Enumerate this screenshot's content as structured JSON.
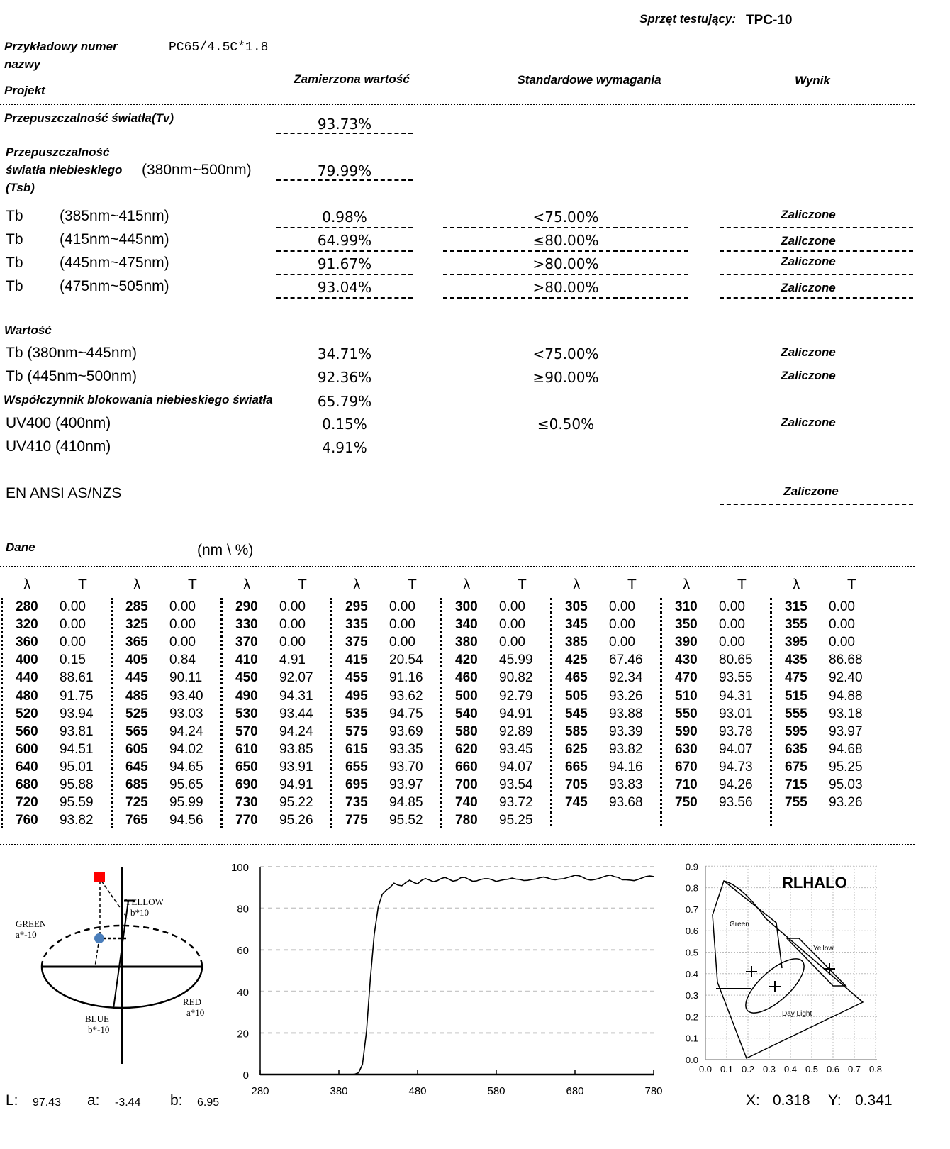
{
  "header": {
    "equipment_label": "Sprzęt testujący:",
    "equipment_value": "TPC-10"
  },
  "sample": {
    "label_line1": "Przykładowy numer",
    "label_line2": "nazwy",
    "value": "PC65/4.5C*1.8"
  },
  "columns": {
    "project": "Projekt",
    "measured": "Zamierzona wartość",
    "standard": "Standardowe wymagania",
    "result": "Wynik"
  },
  "tv": {
    "label": "Przepuszczalność światła(Tv)",
    "value": "93.73%"
  },
  "tsb": {
    "label_line1": "Przepuszczalność",
    "label_line2": "światła niebieskiego",
    "label_line3": "(Tsb)",
    "range": "(380nm~500nm)",
    "value": "79.99%"
  },
  "tb_rows": [
    {
      "name": "Tb",
      "range": "(385nm~415nm)",
      "value": "0.98%",
      "standard": "<75.00%",
      "result": "Zaliczone"
    },
    {
      "name": "Tb",
      "range": "(415nm~445nm)",
      "value": "64.99%",
      "standard": "≤80.00%",
      "result": "Zaliczone"
    },
    {
      "name": "Tb",
      "range": "(445nm~475nm)",
      "value": "91.67%",
      "standard": ">80.00%",
      "result": "Zaliczone"
    },
    {
      "name": "Tb",
      "range": "(475nm~505nm)",
      "value": "93.04%",
      "standard": ">80.00%",
      "result": "Zaliczone"
    }
  ],
  "values_section": {
    "title": "Wartość",
    "rows": [
      {
        "label": "Tb  (380nm~445nm)",
        "value": "34.71%",
        "standard": "<75.00%",
        "result": "Zaliczone"
      },
      {
        "label": "Tb  (445nm~500nm)",
        "value": "92.36%",
        "standard": "≥90.00%",
        "result": "Zaliczone"
      },
      {
        "label": "Współczynnik blokowania niebieskiego światła",
        "value": "65.79%",
        "standard": "",
        "result": ""
      },
      {
        "label": "UV400   (400nm)",
        "value": "0.15%",
        "standard": "≤0.50%",
        "result": "Zaliczone"
      },
      {
        "label": "UV410   (410nm)",
        "value": "4.91%",
        "standard": "",
        "result": ""
      }
    ]
  },
  "standard_row": {
    "label": "EN ANSI AS/NZS",
    "result": "Zaliczone"
  },
  "data_section": {
    "title": "Dane",
    "units": "(nm \\ %)",
    "col_lambda": "λ",
    "col_t": "T"
  },
  "spectrum_table": [
    [
      [
        280,
        "0.00"
      ],
      [
        285,
        "0.00"
      ],
      [
        290,
        "0.00"
      ],
      [
        295,
        "0.00"
      ],
      [
        300,
        "0.00"
      ],
      [
        305,
        "0.00"
      ],
      [
        310,
        "0.00"
      ],
      [
        315,
        "0.00"
      ]
    ],
    [
      [
        320,
        "0.00"
      ],
      [
        325,
        "0.00"
      ],
      [
        330,
        "0.00"
      ],
      [
        335,
        "0.00"
      ],
      [
        340,
        "0.00"
      ],
      [
        345,
        "0.00"
      ],
      [
        350,
        "0.00"
      ],
      [
        355,
        "0.00"
      ]
    ],
    [
      [
        360,
        "0.00"
      ],
      [
        365,
        "0.00"
      ],
      [
        370,
        "0.00"
      ],
      [
        375,
        "0.00"
      ],
      [
        380,
        "0.00"
      ],
      [
        385,
        "0.00"
      ],
      [
        390,
        "0.00"
      ],
      [
        395,
        "0.00"
      ]
    ],
    [
      [
        400,
        "0.15"
      ],
      [
        405,
        "0.84"
      ],
      [
        410,
        "4.91"
      ],
      [
        415,
        "20.54"
      ],
      [
        420,
        "45.99"
      ],
      [
        425,
        "67.46"
      ],
      [
        430,
        "80.65"
      ],
      [
        435,
        "86.68"
      ]
    ],
    [
      [
        440,
        "88.61"
      ],
      [
        445,
        "90.11"
      ],
      [
        450,
        "92.07"
      ],
      [
        455,
        "91.16"
      ],
      [
        460,
        "90.82"
      ],
      [
        465,
        "92.34"
      ],
      [
        470,
        "93.55"
      ],
      [
        475,
        "92.40"
      ]
    ],
    [
      [
        480,
        "91.75"
      ],
      [
        485,
        "93.40"
      ],
      [
        490,
        "94.31"
      ],
      [
        495,
        "93.62"
      ],
      [
        500,
        "92.79"
      ],
      [
        505,
        "93.26"
      ],
      [
        510,
        "94.31"
      ],
      [
        515,
        "94.88"
      ]
    ],
    [
      [
        520,
        "93.94"
      ],
      [
        525,
        "93.03"
      ],
      [
        530,
        "93.44"
      ],
      [
        535,
        "94.75"
      ],
      [
        540,
        "94.91"
      ],
      [
        545,
        "93.88"
      ],
      [
        550,
        "93.01"
      ],
      [
        555,
        "93.18"
      ]
    ],
    [
      [
        560,
        "93.81"
      ],
      [
        565,
        "94.24"
      ],
      [
        570,
        "94.24"
      ],
      [
        575,
        "93.69"
      ],
      [
        580,
        "92.89"
      ],
      [
        585,
        "93.39"
      ],
      [
        590,
        "93.78"
      ],
      [
        595,
        "93.97"
      ]
    ],
    [
      [
        600,
        "94.51"
      ],
      [
        605,
        "94.02"
      ],
      [
        610,
        "93.85"
      ],
      [
        615,
        "93.35"
      ],
      [
        620,
        "93.45"
      ],
      [
        625,
        "93.82"
      ],
      [
        630,
        "94.07"
      ],
      [
        635,
        "94.68"
      ]
    ],
    [
      [
        640,
        "95.01"
      ],
      [
        645,
        "94.65"
      ],
      [
        650,
        "93.91"
      ],
      [
        655,
        "93.70"
      ],
      [
        660,
        "94.07"
      ],
      [
        665,
        "94.16"
      ],
      [
        670,
        "94.73"
      ],
      [
        675,
        "95.25"
      ]
    ],
    [
      [
        680,
        "95.88"
      ],
      [
        685,
        "95.65"
      ],
      [
        690,
        "94.91"
      ],
      [
        695,
        "93.97"
      ],
      [
        700,
        "93.54"
      ],
      [
        705,
        "93.83"
      ],
      [
        710,
        "94.26"
      ],
      [
        715,
        "95.03"
      ]
    ],
    [
      [
        720,
        "95.59"
      ],
      [
        725,
        "95.99"
      ],
      [
        730,
        "95.22"
      ],
      [
        735,
        "94.85"
      ],
      [
        740,
        "93.72"
      ],
      [
        745,
        "93.68"
      ],
      [
        750,
        "93.56"
      ],
      [
        755,
        "93.26"
      ]
    ],
    [
      [
        760,
        "93.82"
      ],
      [
        765,
        "94.56"
      ],
      [
        770,
        "95.26"
      ],
      [
        775,
        "95.52"
      ],
      [
        780,
        "95.25"
      ]
    ]
  ],
  "lab": {
    "labels": {
      "yellow": "YELLOW",
      "yellow_sub": "b*10",
      "green": "GREEN",
      "green_sub": "a*-10",
      "red": "RED",
      "red_sub": "a*10",
      "blue": "BLUE",
      "blue_sub": "b*-10"
    },
    "L_label": "L:",
    "L": "97.43",
    "a_label": "a:",
    "a": "-3.44",
    "b_label": "b:",
    "b": "6.95",
    "marker_colors": {
      "square": "#ff0000",
      "circle": "#4a7ebb"
    }
  },
  "chart_data": {
    "type": "line",
    "xlim": [
      280,
      780
    ],
    "ylim": [
      0,
      100
    ],
    "xticks": [
      "280",
      "380",
      "480",
      "580",
      "680",
      "780"
    ],
    "yticks": [
      "0",
      "20",
      "40",
      "60",
      "80",
      "100"
    ],
    "grid": "horizontal-dashed",
    "source": "spectrum_table"
  },
  "cie": {
    "brand": "RLHALO",
    "region_labels": [
      "Green",
      "Yellow",
      "Day Light"
    ],
    "xticks": [
      "0.0",
      "0.1",
      "0.2",
      "0.3",
      "0.4",
      "0.5",
      "0.6",
      "0.7",
      "0.8"
    ],
    "yticks": [
      "0.0",
      "0.1",
      "0.2",
      "0.3",
      "0.4",
      "0.5",
      "0.6",
      "0.7",
      "0.8",
      "0.9"
    ],
    "X_label": "X:",
    "X": "0.318",
    "Y_label": "Y:",
    "Y": "0.341"
  }
}
